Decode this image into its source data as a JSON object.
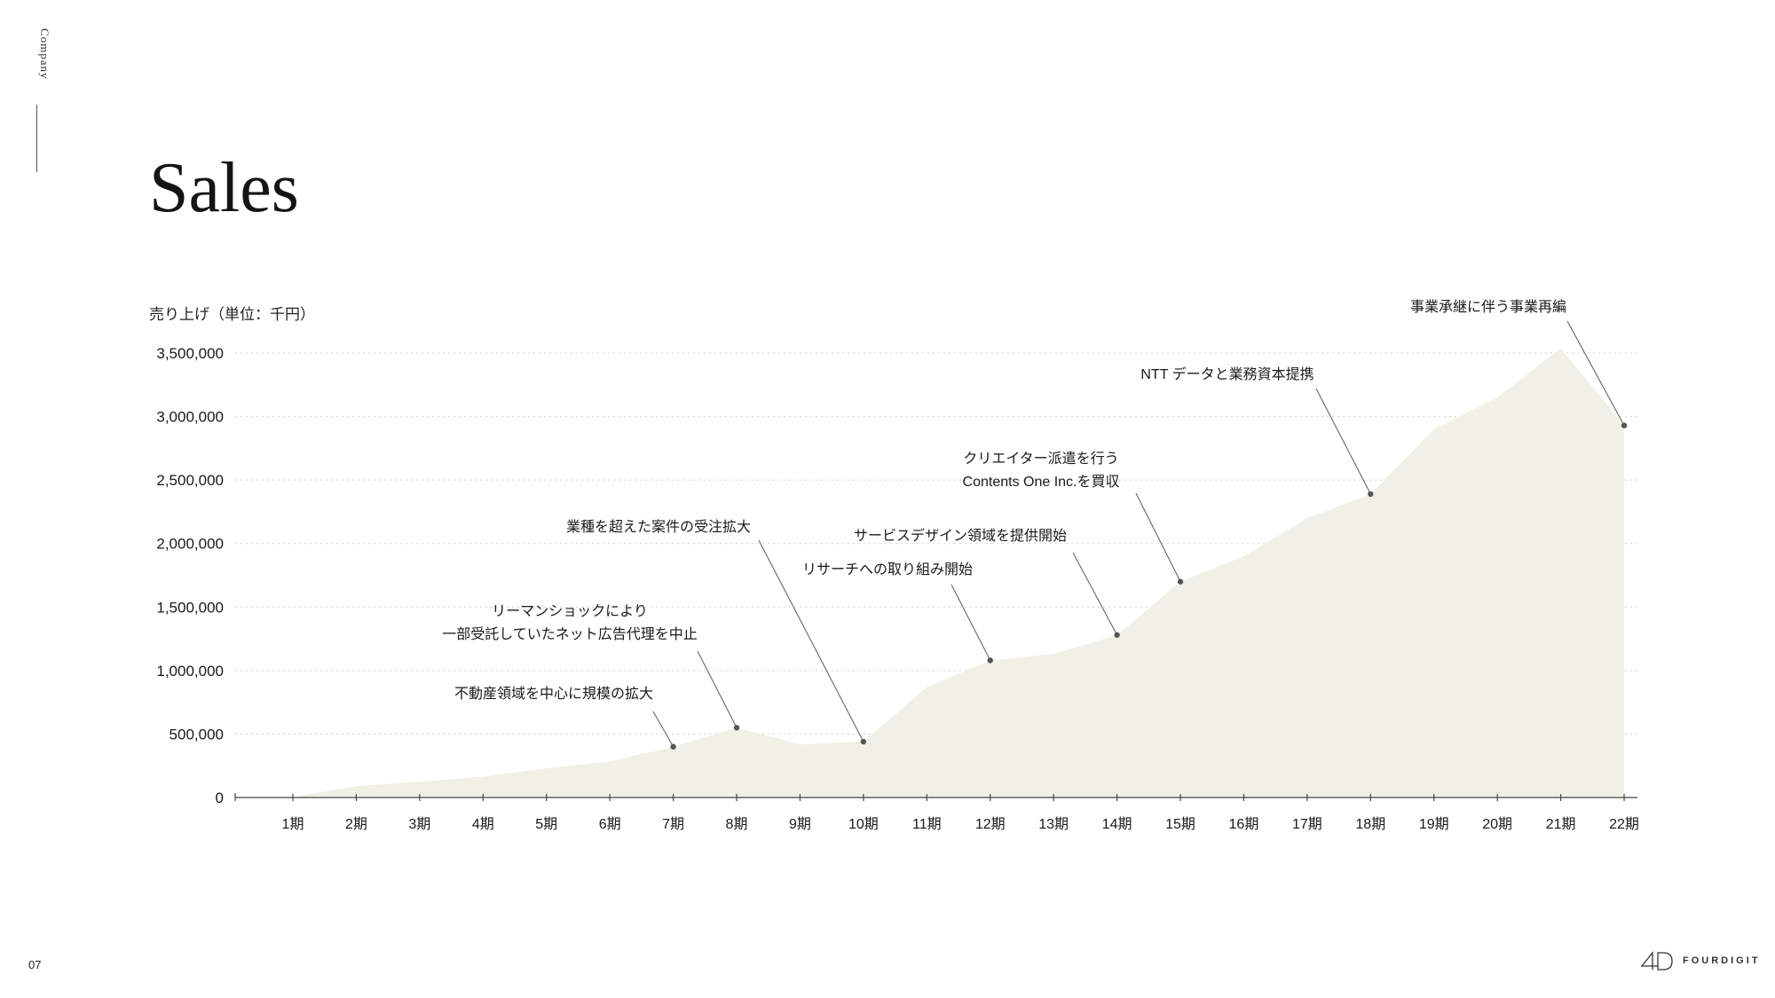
{
  "sidebar": {
    "section_label": "Company"
  },
  "page": {
    "title": "Sales",
    "number": "07"
  },
  "brand": {
    "name": "FOURDIGIT",
    "mark": "4D"
  },
  "colors": {
    "area": "#f1f0e7",
    "text": "#1a1a1a",
    "grid": "#cfcfcf",
    "marker": "#555555"
  },
  "chart_data": {
    "type": "area",
    "title": "Sales",
    "ylabel": "売り上げ（単位：千円）",
    "xlabel": "",
    "ylim": [
      0,
      3500000
    ],
    "yticks": [
      0,
      500000,
      1000000,
      1500000,
      2000000,
      2500000,
      3000000,
      3500000
    ],
    "ytick_labels": [
      "0",
      "500,000",
      "1,000,000",
      "1,500,000",
      "2,000,000",
      "2,500,000",
      "3,000,000",
      "3,500,000"
    ],
    "grid": true,
    "categories": [
      "1期",
      "2期",
      "3期",
      "4期",
      "5期",
      "6期",
      "7期",
      "8期",
      "9期",
      "10期",
      "11期",
      "12期",
      "13期",
      "14期",
      "15期",
      "16期",
      "17期",
      "18期",
      "19期",
      "20期",
      "21期",
      "22期"
    ],
    "values": [
      5000,
      90000,
      125000,
      165000,
      230000,
      285000,
      400000,
      550000,
      420000,
      440000,
      870000,
      1080000,
      1130000,
      1280000,
      1700000,
      1900000,
      2200000,
      2390000,
      2900000,
      3150000,
      3540000,
      2930000
    ],
    "annotations": [
      {
        "period": "7期",
        "lines": [
          "不動産領域を中心に規模の拡大"
        ]
      },
      {
        "period": "8期",
        "lines": [
          "リーマンショックにより",
          "一部受託していたネット広告代理を中止"
        ]
      },
      {
        "period": "10期",
        "lines": [
          "業種を超えた案件の受注拡大"
        ]
      },
      {
        "period": "12期",
        "lines": [
          "リサーチへの取り組み開始"
        ]
      },
      {
        "period": "14期",
        "lines": [
          "サービスデザイン領域を提供開始"
        ]
      },
      {
        "period": "15期",
        "lines": [
          "クリエイター派遣を行う",
          "Contents One Inc.を買収"
        ]
      },
      {
        "period": "18期",
        "lines": [
          "NTT データと業務資本提携"
        ]
      },
      {
        "period": "22期",
        "lines": [
          "事業承継に伴う事業再編"
        ]
      }
    ]
  }
}
